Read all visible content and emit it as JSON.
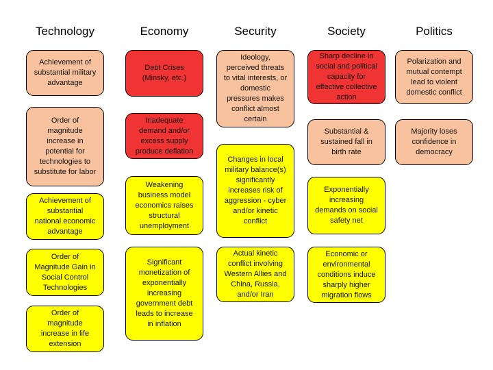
{
  "columns": [
    {
      "title": "Technology",
      "items": [
        {
          "text": "Achievement of substantial military advantage",
          "color": "#f9c29e"
        },
        {
          "text": "Order of magnitude increase in potential for technologies to substitute for labor",
          "color": "#f9c29e"
        },
        {
          "text": "Achievement of substantial national economic advantage",
          "color": "#ffff00"
        },
        {
          "text": "Order of Magnitude Gain in Social Control Technologies",
          "color": "#ffff00"
        },
        {
          "text": "Order of magnitude increase in life extension",
          "color": "#ffff00"
        }
      ]
    },
    {
      "title": "Economy",
      "items": [
        {
          "text": "Debt Crises (Minsky, etc.)",
          "color": "#f03434"
        },
        {
          "text": "Inadequate demand and/or excess supply produce deflation",
          "color": "#f03434"
        },
        {
          "text": "Weakening business model economics raises structural unemployment",
          "color": "#ffff00"
        },
        {
          "text": "Significant monetization of exponentially increasing government debt leads to increase in inflation",
          "color": "#ffff00"
        }
      ]
    },
    {
      "title": "Security",
      "items": [
        {
          "text": "Ideology, perceived threats to vital interests, or domestic pressures makes conflict almost certain",
          "color": "#f9c29e"
        },
        {
          "text": "Changes in local military balance(s) significantly increases risk of aggression - cyber and/or kinetic conflict",
          "color": "#ffff00"
        },
        {
          "text": "Actual kinetic conflict involving Western Allies and China, Russia, and/or Iran",
          "color": "#ffff00"
        }
      ]
    },
    {
      "title": "Society",
      "items": [
        {
          "text": "Sharp decline in social and political capacity for effective collective action",
          "color": "#f03434"
        },
        {
          "text": "Substantial & sustained fall in birth rate",
          "color": "#f9c29e"
        },
        {
          "text": "Exponentially increasing demands on social safety net",
          "color": "#ffff00"
        },
        {
          "text": "Economic or environmental conditions induce sharply higher migration flows",
          "color": "#ffff00"
        }
      ]
    },
    {
      "title": "Politics",
      "items": [
        {
          "text": "Polarization and mutual contempt lead to violent domestic conflict",
          "color": "#f9c29e"
        },
        {
          "text": "Majority loses confidence in democracy",
          "color": "#f9c29e"
        }
      ]
    }
  ]
}
